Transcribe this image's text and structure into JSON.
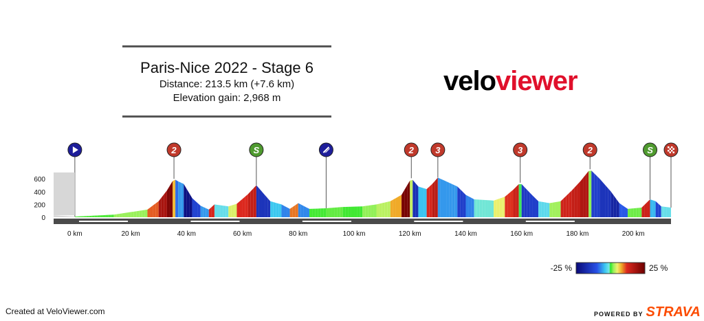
{
  "header": {
    "title": "Paris-Nice 2022 - Stage 6",
    "distance": "Distance: 213.5 km (+7.6 km)",
    "elevation": "Elevation gain: 2,968 m"
  },
  "brand": {
    "part1": "velo",
    "part2": "viewer"
  },
  "footer": {
    "created": "Created at VeloViewer.com",
    "powered": "POWERED BY",
    "strava": "STRAVA"
  },
  "colors": {
    "brand_red": "#e0102b",
    "strava_orange": "#fc4c02",
    "climb_red": "#c0392b",
    "sprint_green": "#4f9a2f",
    "start_blue": "#1e1e9a"
  },
  "chart_data": {
    "type": "area",
    "title": "Paris-Nice 2022 - Stage 6",
    "xlabel": "",
    "ylabel": "",
    "xlim": [
      -7.6,
      213.5
    ],
    "ylim": [
      0,
      800
    ],
    "x_ticks": [
      0,
      20,
      40,
      60,
      80,
      100,
      120,
      140,
      160,
      180,
      200
    ],
    "x_tick_labels": [
      "0 km",
      "20 km",
      "40 km",
      "60 km",
      "80 km",
      "100 km",
      "120 km",
      "140 km",
      "160 km",
      "180 km",
      "200 km"
    ],
    "y_ticks": [
      0,
      200,
      400,
      600
    ],
    "y_tick_labels": [
      "0",
      "200",
      "400",
      "600"
    ],
    "profile": [
      {
        "x": -7.6,
        "y": 30
      },
      {
        "x": 0,
        "y": 10
      },
      {
        "x": 14,
        "y": 40
      },
      {
        "x": 26,
        "y": 120
      },
      {
        "x": 30,
        "y": 250
      },
      {
        "x": 33,
        "y": 420
      },
      {
        "x": 35.5,
        "y": 600
      },
      {
        "x": 37,
        "y": 560
      },
      {
        "x": 39,
        "y": 520
      },
      {
        "x": 42,
        "y": 300
      },
      {
        "x": 45,
        "y": 180
      },
      {
        "x": 48,
        "y": 120
      },
      {
        "x": 50,
        "y": 200
      },
      {
        "x": 55,
        "y": 170
      },
      {
        "x": 58,
        "y": 210
      },
      {
        "x": 62,
        "y": 360
      },
      {
        "x": 65,
        "y": 500
      },
      {
        "x": 67,
        "y": 400
      },
      {
        "x": 70,
        "y": 250
      },
      {
        "x": 74,
        "y": 200
      },
      {
        "x": 77,
        "y": 130
      },
      {
        "x": 80,
        "y": 220
      },
      {
        "x": 84,
        "y": 130
      },
      {
        "x": 90,
        "y": 140
      },
      {
        "x": 96,
        "y": 160
      },
      {
        "x": 103,
        "y": 170
      },
      {
        "x": 108,
        "y": 200
      },
      {
        "x": 113,
        "y": 250
      },
      {
        "x": 117,
        "y": 350
      },
      {
        "x": 120.5,
        "y": 610
      },
      {
        "x": 123,
        "y": 480
      },
      {
        "x": 126,
        "y": 440
      },
      {
        "x": 128,
        "y": 520
      },
      {
        "x": 130,
        "y": 620
      },
      {
        "x": 133,
        "y": 560
      },
      {
        "x": 137,
        "y": 480
      },
      {
        "x": 140,
        "y": 350
      },
      {
        "x": 143,
        "y": 280
      },
      {
        "x": 150,
        "y": 260
      },
      {
        "x": 154,
        "y": 320
      },
      {
        "x": 157,
        "y": 430
      },
      {
        "x": 159.5,
        "y": 540
      },
      {
        "x": 163,
        "y": 380
      },
      {
        "x": 166,
        "y": 250
      },
      {
        "x": 170,
        "y": 220
      },
      {
        "x": 174,
        "y": 250
      },
      {
        "x": 178,
        "y": 420
      },
      {
        "x": 181,
        "y": 560
      },
      {
        "x": 184.5,
        "y": 750
      },
      {
        "x": 188,
        "y": 600
      },
      {
        "x": 192,
        "y": 400
      },
      {
        "x": 195,
        "y": 220
      },
      {
        "x": 198,
        "y": 130
      },
      {
        "x": 203,
        "y": 150
      },
      {
        "x": 206,
        "y": 280
      },
      {
        "x": 208,
        "y": 250
      },
      {
        "x": 210,
        "y": 170
      },
      {
        "x": 213.5,
        "y": 150
      }
    ],
    "markers": [
      {
        "km": 0,
        "type": "start",
        "label": ""
      },
      {
        "km": 35.5,
        "type": "climb",
        "label": "2"
      },
      {
        "km": 65,
        "type": "sprint",
        "label": "S"
      },
      {
        "km": 90,
        "type": "feed",
        "label": ""
      },
      {
        "km": 120.5,
        "type": "climb",
        "label": "2"
      },
      {
        "km": 130,
        "type": "climb",
        "label": "3"
      },
      {
        "km": 159.5,
        "type": "climb",
        "label": "3"
      },
      {
        "km": 184.5,
        "type": "climb",
        "label": "2"
      },
      {
        "km": 206,
        "type": "sprint",
        "label": "S"
      },
      {
        "km": 213.5,
        "type": "finish",
        "label": ""
      }
    ],
    "gradient_legend": {
      "min_label": "-25 %",
      "max_label": "25 %",
      "min": -25,
      "max": 25
    }
  }
}
